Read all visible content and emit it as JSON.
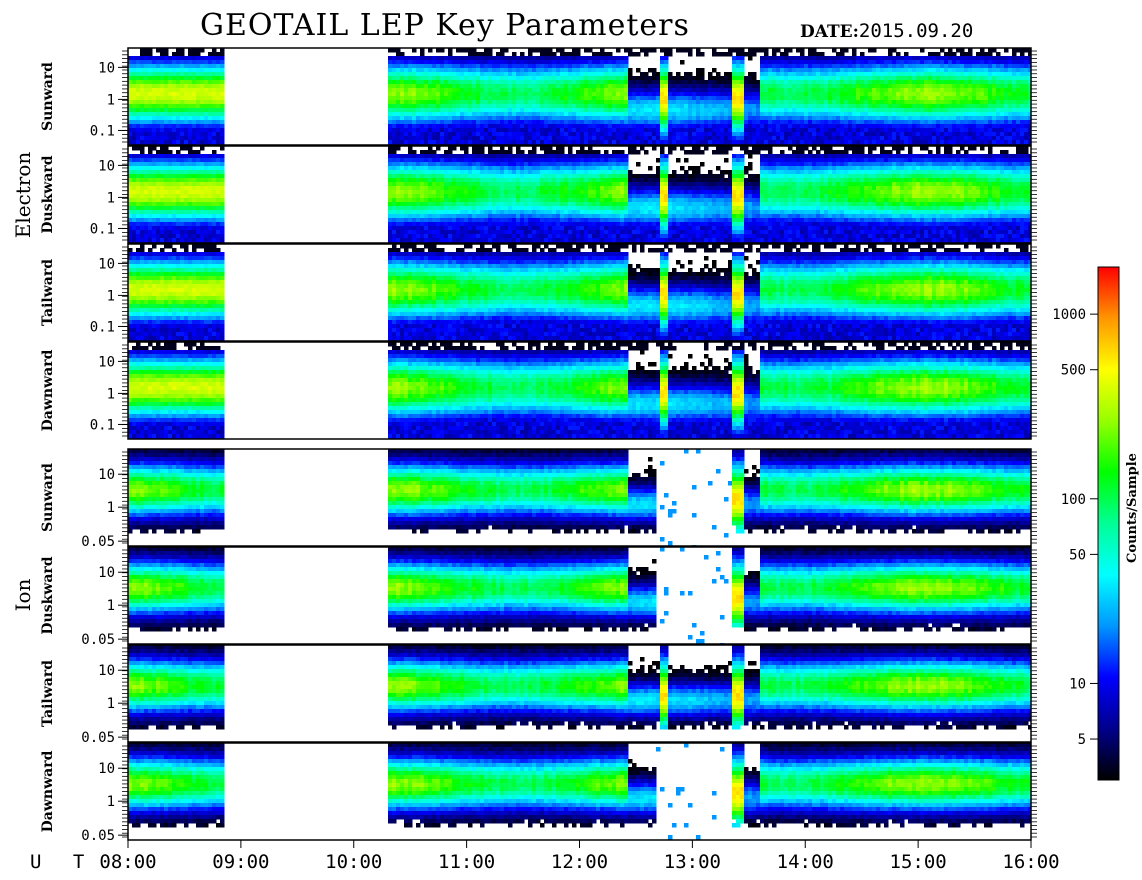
{
  "header": {
    "title": "GEOTAIL LEP Key Parameters",
    "date_label": "DATE:",
    "date_value": "2015.09.20"
  },
  "chart_data": {
    "type": "heatmap",
    "title": "GEOTAIL LEP Key Parameters",
    "x_axis": {
      "label": "U T",
      "range": [
        "08:00",
        "16:00"
      ],
      "ticks": [
        "08:00",
        "09:00",
        "10:00",
        "11:00",
        "12:00",
        "13:00",
        "14:00",
        "15:00",
        "16:00"
      ]
    },
    "data_gap_ut": [
      "08:50",
      "10:17"
    ],
    "groups": [
      {
        "name": "Electron",
        "panels": [
          {
            "label": "Sunward",
            "y_ticks": [
              "10",
              "1",
              "0.1"
            ],
            "y_values": [
              10,
              1,
              0.1
            ]
          },
          {
            "label": "Duskward",
            "y_ticks": [
              "10",
              "1",
              "0.1"
            ],
            "y_values": [
              10,
              1,
              0.1
            ]
          },
          {
            "label": "Tailward",
            "y_ticks": [
              "10",
              "1",
              "0.1"
            ],
            "y_values": [
              10,
              1,
              0.1
            ]
          },
          {
            "label": "Dawnward",
            "y_ticks": [
              "10",
              "1",
              "0.1"
            ],
            "y_values": [
              10,
              1,
              0.1
            ]
          }
        ]
      },
      {
        "name": "Ion",
        "panels": [
          {
            "label": "Sunward",
            "y_ticks": [
              "10",
              "1",
              "0.05"
            ],
            "y_values": [
              10,
              1,
              0.05
            ]
          },
          {
            "label": "Duskward",
            "y_ticks": [
              "10",
              "1",
              "0.05"
            ],
            "y_values": [
              10,
              1,
              0.05
            ]
          },
          {
            "label": "Tailward",
            "y_ticks": [
              "10",
              "1",
              "0.05"
            ],
            "y_values": [
              10,
              1,
              0.05
            ]
          },
          {
            "label": "Dawnward",
            "y_ticks": [
              "10",
              "1",
              "0.05"
            ],
            "y_values": [
              10,
              1,
              0.05
            ]
          }
        ]
      }
    ],
    "colorbar": {
      "label": "Counts/Sample",
      "scale": "log",
      "range": [
        3,
        1800
      ],
      "ticks": [
        "1000",
        "500",
        "100",
        "50",
        "10",
        "5"
      ],
      "tick_values": [
        1000,
        500,
        100,
        50,
        10,
        5
      ],
      "colormap": [
        "#000000",
        "#00008c",
        "#0000ff",
        "#0096ff",
        "#00ffff",
        "#00ff96",
        "#00ff00",
        "#96ff00",
        "#ffff00",
        "#ff9600",
        "#ff0000"
      ]
    }
  }
}
